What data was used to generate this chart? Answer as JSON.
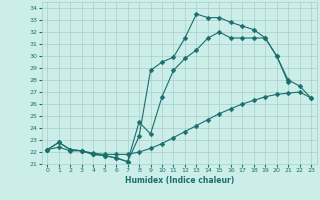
{
  "xlabel": "Humidex (Indice chaleur)",
  "bg_color": "#cceee8",
  "grid_color": "#aacccc",
  "line_color": "#1a6e6e",
  "xlim": [
    -0.5,
    23.5
  ],
  "ylim": [
    21,
    34.5
  ],
  "yticks": [
    21,
    22,
    23,
    24,
    25,
    26,
    27,
    28,
    29,
    30,
    31,
    32,
    33,
    34
  ],
  "xticks": [
    0,
    1,
    2,
    3,
    4,
    5,
    6,
    7,
    8,
    9,
    10,
    11,
    12,
    13,
    14,
    15,
    16,
    17,
    18,
    19,
    20,
    21,
    22,
    23
  ],
  "line1_x": [
    0,
    1,
    2,
    3,
    4,
    5,
    6,
    7,
    8,
    9,
    10,
    11,
    12,
    13,
    14,
    15,
    16,
    17,
    18,
    19,
    20,
    21
  ],
  "line1_y": [
    22.2,
    22.8,
    22.2,
    22.1,
    21.8,
    21.7,
    21.5,
    21.2,
    23.3,
    28.8,
    29.5,
    29.9,
    31.5,
    33.5,
    33.2,
    33.2,
    32.8,
    32.5,
    32.2,
    31.5,
    30.0,
    27.8
  ],
  "line2_x": [
    0,
    1,
    2,
    3,
    4,
    5,
    6,
    7,
    8,
    9,
    10,
    11,
    12,
    13,
    14,
    15,
    16,
    17,
    18,
    19,
    20,
    21,
    22,
    23
  ],
  "line2_y": [
    22.2,
    22.8,
    22.2,
    22.1,
    21.8,
    21.7,
    21.5,
    21.2,
    24.5,
    23.5,
    26.6,
    28.8,
    29.8,
    30.5,
    31.5,
    32.0,
    31.5,
    31.5,
    31.5,
    31.5,
    30.0,
    28.0,
    27.5,
    26.5
  ],
  "line3_x": [
    0,
    1,
    2,
    3,
    4,
    5,
    6,
    7,
    8,
    9,
    10,
    11,
    12,
    13,
    14,
    15,
    16,
    17,
    18,
    19,
    20,
    21,
    22,
    23
  ],
  "line3_y": [
    22.2,
    22.4,
    22.1,
    22.1,
    21.9,
    21.8,
    21.8,
    21.8,
    22.0,
    22.3,
    22.7,
    23.2,
    23.7,
    24.2,
    24.7,
    25.2,
    25.6,
    26.0,
    26.3,
    26.6,
    26.8,
    26.9,
    27.0,
    26.5
  ]
}
